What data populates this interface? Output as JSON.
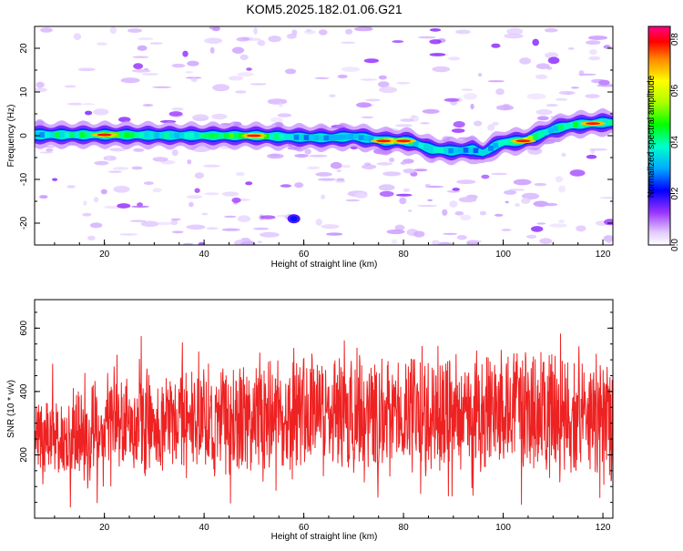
{
  "title": "KOM5.2025.182.01.06.G21",
  "chart_data": [
    {
      "type": "heatmap",
      "xlabel": "Height of straight line (km)",
      "ylabel": "Frequency (Hz)",
      "xlim": [
        6,
        122
      ],
      "ylim": [
        -25,
        25
      ],
      "x_ticks": [
        20,
        40,
        60,
        80,
        100,
        120
      ],
      "y_ticks": [
        -20,
        -10,
        0,
        10,
        20
      ],
      "colorbar": {
        "label": "Normalized spectral amplitude",
        "range": [
          0,
          0.85
        ],
        "ticks": [
          0.0,
          0.2,
          0.4,
          0.6,
          0.8
        ]
      },
      "ridge": {
        "x": [
          6,
          10,
          20,
          30,
          40,
          50,
          60,
          65,
          70,
          74,
          76,
          80,
          82,
          84,
          86,
          90,
          94,
          96,
          98,
          100,
          104,
          108,
          110,
          114,
          118,
          120
        ],
        "frequency": [
          0.2,
          0.2,
          0.2,
          0.1,
          0.0,
          0.0,
          -0.4,
          -0.5,
          -0.2,
          -0.8,
          -1.2,
          -1.2,
          -1.5,
          -2.5,
          -3.2,
          -3.5,
          -3.2,
          -4.0,
          -2.5,
          -1.5,
          -1.2,
          0.5,
          1.5,
          2.5,
          2.8,
          3.0
        ],
        "amplitude": [
          0.45,
          0.6,
          0.75,
          0.55,
          0.62,
          0.8,
          0.45,
          0.5,
          0.45,
          0.55,
          0.85,
          0.85,
          0.6,
          0.5,
          0.55,
          0.5,
          0.45,
          0.5,
          0.5,
          0.6,
          0.85,
          0.6,
          0.55,
          0.65,
          0.8,
          0.6
        ]
      }
    },
    {
      "type": "line",
      "xlabel": "Height of straight line (km)",
      "ylabel": "SNR (10 * v/v)",
      "xlim": [
        6,
        122
      ],
      "ylim": [
        0,
        690
      ],
      "x_ticks": [
        20,
        40,
        60,
        80,
        100,
        120
      ],
      "y_ticks": [
        200,
        400,
        600
      ],
      "color": "#ee2222",
      "series_description": "dense noisy SNR trace",
      "envelope": {
        "x": [
          6,
          10,
          20,
          30,
          40,
          50,
          60,
          70,
          80,
          90,
          100,
          110,
          120,
          122
        ],
        "mean": [
          250,
          260,
          290,
          300,
          310,
          320,
          330,
          330,
          320,
          330,
          340,
          340,
          310,
          300
        ],
        "spread": [
          110,
          120,
          130,
          140,
          150,
          160,
          170,
          170,
          160,
          160,
          165,
          165,
          170,
          170
        ]
      }
    }
  ]
}
